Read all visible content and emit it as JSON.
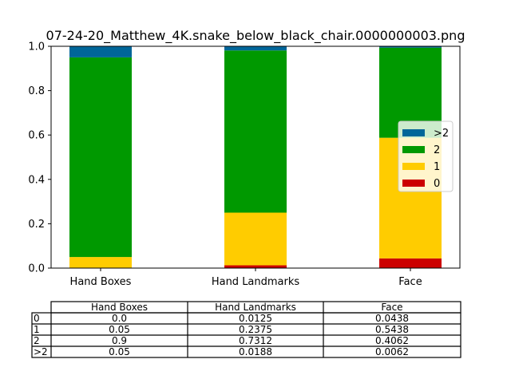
{
  "chart_data": {
    "type": "bar",
    "stacked": true,
    "title": "07-24-20_Matthew_4K.snake_below_black_chair.0000000003.png",
    "categories": [
      "Hand Boxes",
      "Hand Landmarks",
      "Face"
    ],
    "ylim": [
      0,
      1.0
    ],
    "yticks": [
      "0.0",
      "0.2",
      "0.4",
      "0.6",
      "0.8",
      "1.0"
    ],
    "grid": false,
    "legend_position": "right",
    "series": [
      {
        "name": "0",
        "color": "#cc0000",
        "values": [
          0.0,
          0.0125,
          0.0438
        ]
      },
      {
        "name": "1",
        "color": "#ffcc00",
        "values": [
          0.05,
          0.2375,
          0.5438
        ]
      },
      {
        "name": "2",
        "color": "#009900",
        "values": [
          0.9,
          0.7312,
          0.4062
        ]
      },
      {
        "name": ">2",
        "color": "#006699",
        "values": [
          0.05,
          0.0188,
          0.0062
        ]
      }
    ],
    "legend_order": [
      ">2",
      "2",
      "1",
      "0"
    ],
    "table": {
      "columns": [
        "Hand Boxes",
        "Hand Landmarks",
        "Face"
      ],
      "rows": [
        {
          "label": "0",
          "cells": [
            "0.0",
            "0.0125",
            "0.0438"
          ]
        },
        {
          "label": "1",
          "cells": [
            "0.05",
            "0.2375",
            "0.5438"
          ]
        },
        {
          "label": "2",
          "cells": [
            "0.9",
            "0.7312",
            "0.4062"
          ]
        },
        {
          "label": ">2",
          "cells": [
            "0.05",
            "0.0188",
            "0.0062"
          ]
        }
      ]
    }
  }
}
